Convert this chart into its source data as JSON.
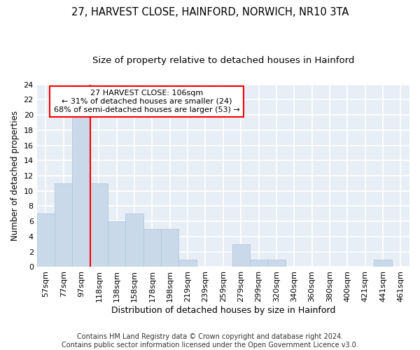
{
  "title1": "27, HARVEST CLOSE, HAINFORD, NORWICH, NR10 3TA",
  "title2": "Size of property relative to detached houses in Hainford",
  "xlabel": "Distribution of detached houses by size in Hainford",
  "ylabel": "Number of detached properties",
  "categories": [
    "57sqm",
    "77sqm",
    "97sqm",
    "118sqm",
    "138sqm",
    "158sqm",
    "178sqm",
    "198sqm",
    "219sqm",
    "239sqm",
    "259sqm",
    "279sqm",
    "299sqm",
    "320sqm",
    "340sqm",
    "360sqm",
    "380sqm",
    "400sqm",
    "421sqm",
    "441sqm",
    "461sqm"
  ],
  "values": [
    7,
    11,
    20,
    11,
    6,
    7,
    5,
    5,
    1,
    0,
    0,
    3,
    1,
    1,
    0,
    0,
    0,
    0,
    0,
    1,
    0
  ],
  "bar_color": "#c9d9ea",
  "bar_edge_color": "#b0c8dc",
  "highlight_line_index": 2.5,
  "annotation_text": "27 HARVEST CLOSE: 106sqm\n← 31% of detached houses are smaller (24)\n68% of semi-detached houses are larger (53) →",
  "annotation_box_color": "white",
  "annotation_box_edge_color": "red",
  "highlight_line_color": "red",
  "ylim": [
    0,
    24
  ],
  "yticks": [
    0,
    2,
    4,
    6,
    8,
    10,
    12,
    14,
    16,
    18,
    20,
    22,
    24
  ],
  "footer": "Contains HM Land Registry data © Crown copyright and database right 2024.\nContains public sector information licensed under the Open Government Licence v3.0.",
  "background_color": "#e8eef6",
  "grid_color": "#ffffff",
  "title1_fontsize": 10.5,
  "title2_fontsize": 9.5,
  "xlabel_fontsize": 9,
  "ylabel_fontsize": 8.5,
  "tick_fontsize": 8,
  "annotation_fontsize": 8,
  "footer_fontsize": 7
}
